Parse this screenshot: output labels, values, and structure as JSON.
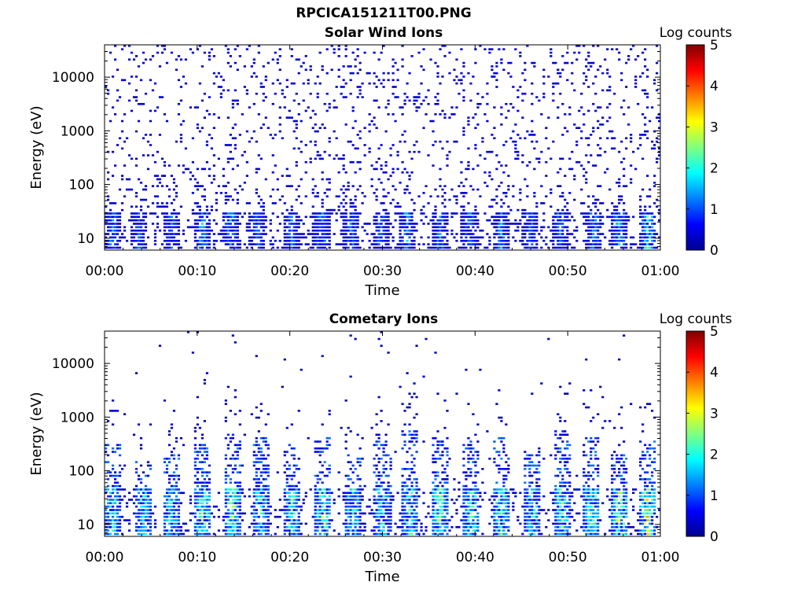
{
  "figure": {
    "title": "RPCICA151211T00.PNG"
  },
  "chart_data": [
    {
      "type": "heatmap",
      "title": "Solar Wind Ions",
      "xlabel": "Time",
      "ylabel": "Energy (eV)",
      "x_ticks": [
        "00:00",
        "00:10",
        "00:20",
        "00:30",
        "00:40",
        "00:50",
        "01:00"
      ],
      "x_range": [
        "00:00",
        "01:00"
      ],
      "y_scale": "log",
      "y_ticks": [
        10,
        100,
        1000,
        10000
      ],
      "y_tick_labels": [
        "10",
        "100",
        "1000",
        "10000"
      ],
      "y_range_eV": [
        6,
        40000
      ],
      "colorbar": {
        "label": "Log counts",
        "ticks": [
          0,
          1,
          2,
          3,
          4,
          5
        ],
        "range": [
          0,
          5
        ],
        "colormap": "jet"
      },
      "burst_times_min": [
        0.8,
        3.8,
        7.2,
        10.6,
        13.6,
        16.5,
        20.2,
        23.4,
        26.6,
        29.8,
        32.6,
        36.2,
        39.4,
        42.8,
        46.0,
        49.2,
        52.8,
        55.6,
        58.7
      ],
      "burst_peak_log_counts": [
        1.3,
        1.2,
        1.1,
        1.8,
        1.6,
        1.0,
        1.2,
        1.5,
        1.3,
        1.2,
        1.6,
        1.3,
        1.2,
        1.5,
        1.1,
        1.2,
        1.4,
        1.7,
        2.5
      ],
      "background_log_counts": 0.3
    },
    {
      "type": "heatmap",
      "title": "Cometary Ions",
      "xlabel": "Time",
      "ylabel": "Energy (eV)",
      "x_ticks": [
        "00:00",
        "00:10",
        "00:20",
        "00:30",
        "00:40",
        "00:50",
        "01:00"
      ],
      "x_range": [
        "00:00",
        "01:00"
      ],
      "y_scale": "log",
      "y_ticks": [
        10,
        100,
        1000,
        10000
      ],
      "y_tick_labels": [
        "10",
        "100",
        "1000",
        "10000"
      ],
      "y_range_eV": [
        6,
        40000
      ],
      "colorbar": {
        "label": "Log counts",
        "ticks": [
          0,
          1,
          2,
          3,
          4,
          5
        ],
        "range": [
          0,
          5
        ],
        "colormap": "jet"
      },
      "burst_times_min": [
        0.8,
        4.2,
        7.2,
        10.6,
        13.8,
        16.8,
        20.2,
        23.6,
        26.8,
        30.0,
        33.0,
        36.2,
        39.6,
        42.8,
        46.2,
        49.4,
        52.6,
        55.6,
        58.6
      ],
      "burst_peak_log_counts": [
        2.0,
        2.0,
        2.2,
        2.9,
        2.8,
        2.1,
        2.4,
        3.0,
        2.1,
        2.0,
        2.1,
        2.6,
        2.3,
        2.5,
        2.0,
        2.4,
        2.6,
        3.0,
        3.3
      ],
      "burst_max_energy_eV": [
        300,
        150,
        200,
        300,
        500,
        400,
        300,
        400,
        200,
        350,
        600,
        450,
        350,
        450,
        200,
        600,
        500,
        250,
        350
      ],
      "background_log_counts": 0.2
    }
  ]
}
